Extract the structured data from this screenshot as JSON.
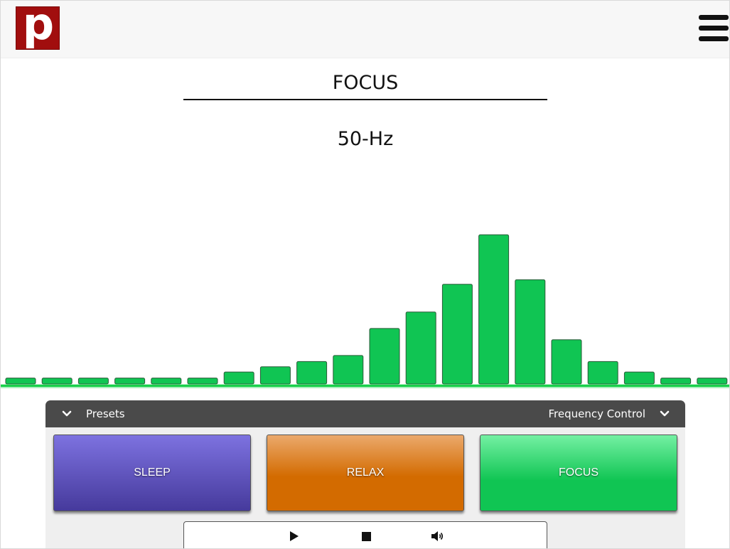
{
  "header": {
    "logo_letter": "p",
    "menu_icon": "hamburger-menu-icon"
  },
  "display": {
    "title": "FOCUS",
    "frequency": "50-Hz"
  },
  "visualizer": {
    "bar_color": "#10c553",
    "bar_border": "#2a5a38",
    "baseline_color": "#18d04a",
    "levels": [
      0.04,
      0.04,
      0.04,
      0.04,
      0.04,
      0.04,
      0.08,
      0.115,
      0.15,
      0.19,
      0.37,
      0.48,
      0.665,
      0.995,
      0.695,
      0.295,
      0.15,
      0.08,
      0.04,
      0.04
    ]
  },
  "panel": {
    "presets_label": "Presets",
    "frequency_control_label": "Frequency Control",
    "presets": [
      {
        "label": "SLEEP"
      },
      {
        "label": "RELAX"
      },
      {
        "label": "FOCUS"
      }
    ]
  },
  "transport": {
    "play_icon": "play-icon",
    "stop_icon": "stop-icon",
    "volume_icon": "volume-icon"
  },
  "colors": {
    "logo": "#a10e0e",
    "sleep": "#5a4dc0",
    "relax": "#d36b00",
    "focus": "#10c553",
    "panel_header": "#4a4a4a"
  }
}
